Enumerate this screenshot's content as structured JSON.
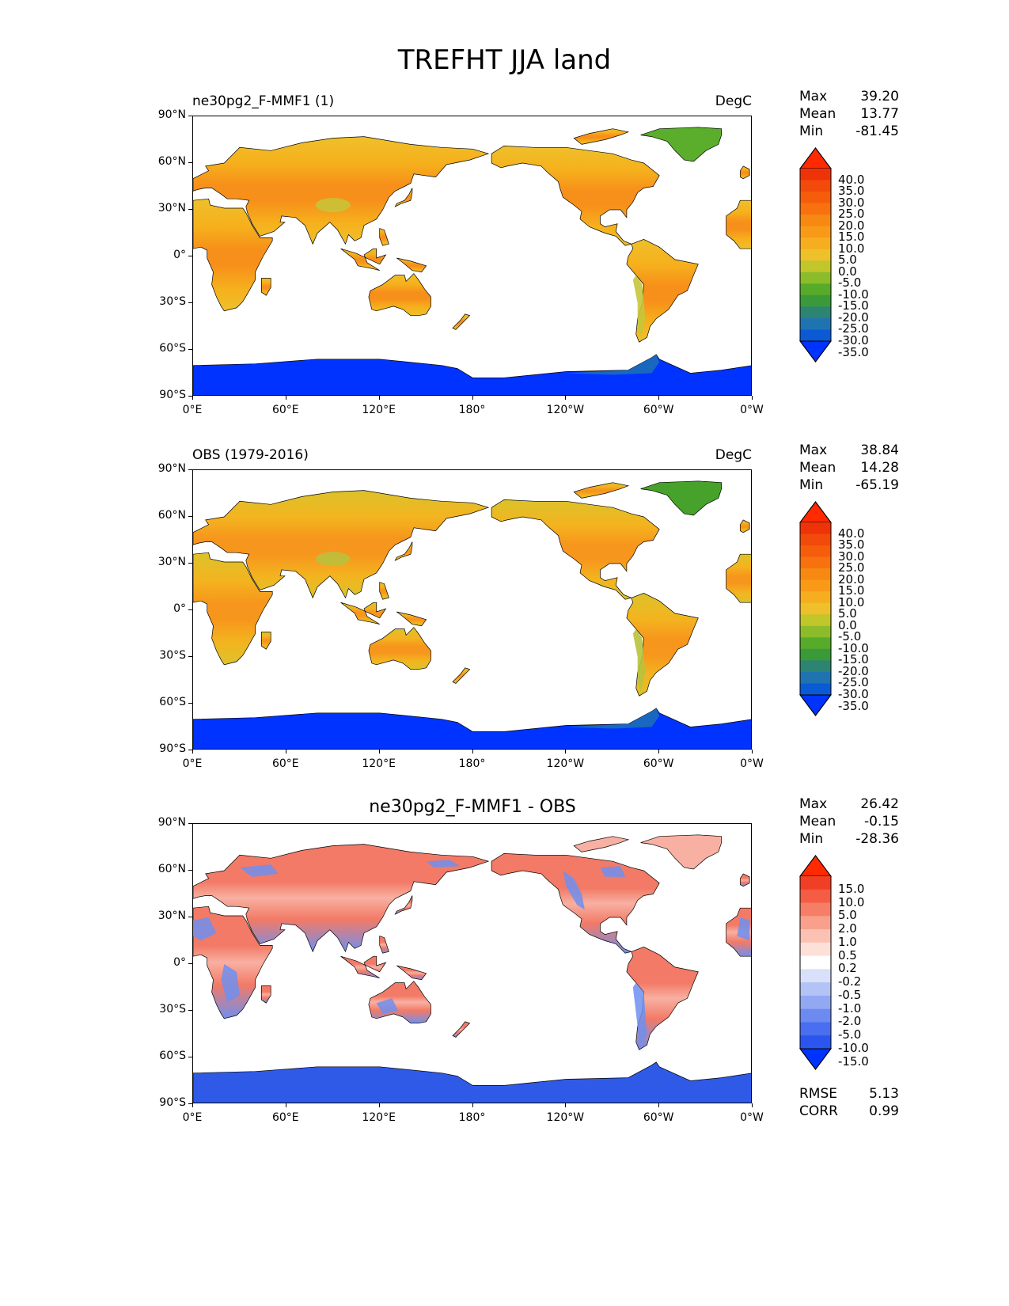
{
  "title": "TREFHT JJA land",
  "panels": [
    {
      "left_title": "ne30pg2_F-MMF1 (1)",
      "right_title": "DegC",
      "center_title": "",
      "stats": {
        "max_label": "Max",
        "max": "39.20",
        "mean_label": "Mean",
        "mean": "13.77",
        "min_label": "Min",
        "min": "-81.45"
      },
      "field": "model"
    },
    {
      "left_title": "OBS (1979-2016)",
      "right_title": "DegC",
      "center_title": "",
      "stats": {
        "max_label": "Max",
        "max": "38.84",
        "mean_label": "Mean",
        "mean": "14.28",
        "min_label": "Min",
        "min": "-65.19"
      },
      "field": "obs"
    },
    {
      "left_title": "",
      "right_title": "",
      "center_title": "ne30pg2_F-MMF1 - OBS",
      "stats": {
        "max_label": "Max",
        "max": "26.42",
        "mean_label": "Mean",
        "mean": "-0.15",
        "min_label": "Min",
        "min": "-28.36"
      },
      "metrics": {
        "rmse_label": "RMSE",
        "rmse": "5.13",
        "corr_label": "CORR",
        "corr": "0.99"
      },
      "field": "diff"
    }
  ],
  "axes": {
    "lat_ticks": [
      "90°N",
      "60°N",
      "30°N",
      "0°",
      "30°S",
      "60°S",
      "90°S"
    ],
    "lon_ticks": [
      "0°E",
      "60°E",
      "120°E",
      "180°",
      "120°W",
      "60°W",
      "0°W"
    ]
  },
  "colorbars": {
    "temperature": {
      "labels": [
        "40.0",
        "35.0",
        "30.0",
        "25.0",
        "20.0",
        "15.0",
        "10.0",
        "5.0",
        "0.0",
        "-5.0",
        "-10.0",
        "-15.0",
        "-20.0",
        "-25.0",
        "-30.0",
        "-35.0"
      ],
      "colors": [
        "#0033ff",
        "#0a5ad6",
        "#1f74b0",
        "#2d8472",
        "#3a9a3a",
        "#56ab2a",
        "#8cbc2a",
        "#c1c62a",
        "#eec02b",
        "#f7ad20",
        "#f89a18",
        "#f78812",
        "#f7720f",
        "#f55d0d",
        "#f24a0b",
        "#ee3308",
        "#ff2a00"
      ]
    },
    "difference": {
      "labels": [
        "15.0",
        "10.0",
        "5.0",
        "2.0",
        "1.0",
        "0.5",
        "0.2",
        "-0.2",
        "-0.5",
        "-1.0",
        "-2.0",
        "-5.0",
        "-10.0",
        "-15.0"
      ],
      "colors": [
        "#0033ff",
        "#2a55ef",
        "#4a6ef0",
        "#6d8af0",
        "#93a8f2",
        "#b4c3f5",
        "#d8e0fa",
        "#ffffff",
        "#fde0d8",
        "#fbc2b4",
        "#f9a08c",
        "#f77e66",
        "#f45c44",
        "#f13f26",
        "#ff2a00"
      ]
    }
  },
  "map_colors": {
    "model": {
      "tropics": "#f7901a",
      "mid": "#f6b01c",
      "high": "#eec02b",
      "greenland": "#5aae2c",
      "himalaya": "#c5c63a",
      "antarctica": "#0033ff"
    },
    "obs": {
      "tropics": "#f7961c",
      "mid": "#f3b41f",
      "high": "#dcc22b",
      "greenland": "#46a22a",
      "himalaya": "#b8c23e",
      "antarctica": "#0033ff"
    },
    "diff": {
      "warm": "#f27a66",
      "warmlight": "#f8b0a2",
      "cool": "#6f8ff0",
      "antarctica": "#2f5ae8"
    }
  }
}
